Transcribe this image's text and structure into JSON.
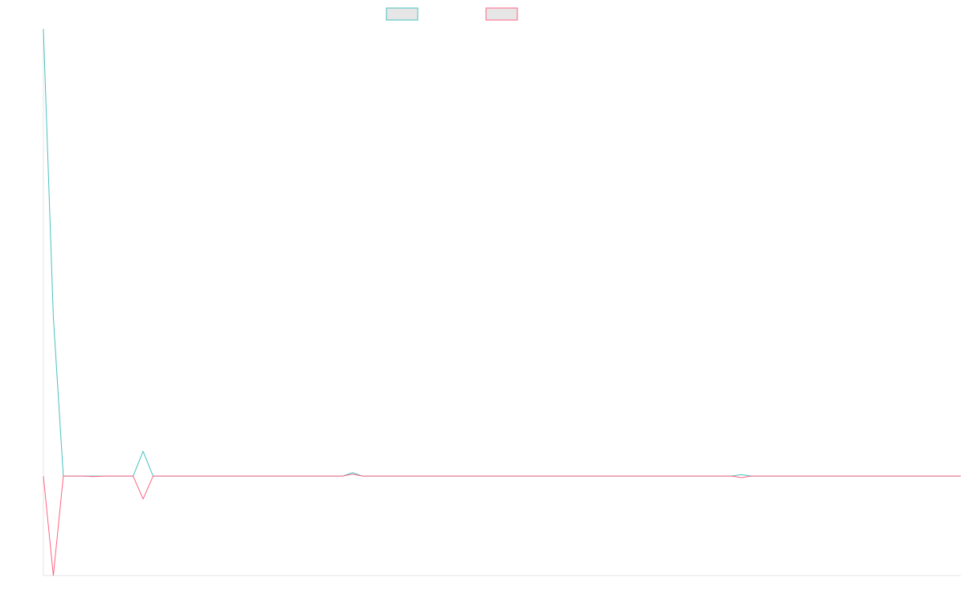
{
  "chart_data": {
    "type": "line",
    "title": "",
    "xlabel": "",
    "ylabel": "",
    "legend": "top-center",
    "grid": false,
    "x": [
      0,
      1,
      2,
      3,
      4,
      5,
      6,
      7,
      8,
      9,
      10,
      11,
      12,
      13,
      14,
      15,
      16,
      17,
      18,
      19,
      20,
      21,
      22,
      23,
      24,
      25,
      26,
      27,
      28,
      29,
      30,
      31,
      32,
      33,
      34,
      35,
      36,
      37,
      38,
      39,
      40,
      41,
      42,
      43,
      44,
      45,
      46,
      47,
      48,
      49,
      50,
      51,
      52,
      53,
      54,
      55,
      56,
      57,
      58,
      59,
      60,
      61,
      62,
      63,
      64,
      65,
      66,
      67,
      68,
      69,
      70,
      71,
      72,
      73,
      74,
      75,
      76,
      77,
      78,
      79,
      80,
      81,
      82,
      83,
      84,
      85,
      86,
      87,
      88,
      89,
      90,
      91,
      92
    ],
    "xlim": [
      0,
      92
    ],
    "ylim": [
      -100,
      450
    ],
    "series": [
      {
        "name": "",
        "color": "#4bc0c0",
        "fill": "#e6e6e6",
        "values": [
          450,
          160,
          0,
          0,
          0,
          0,
          0,
          0,
          0,
          0,
          25,
          0,
          0,
          0,
          0,
          0,
          0,
          0,
          0,
          0,
          0,
          0,
          0,
          0,
          0,
          0,
          0,
          0,
          0,
          0,
          0,
          3.5,
          0,
          0,
          0,
          0,
          0,
          0,
          0,
          0,
          0,
          0,
          0,
          0,
          0,
          0,
          0,
          0,
          0,
          0,
          0,
          0,
          0,
          0,
          0,
          0,
          0,
          0,
          0,
          0,
          0,
          0,
          0,
          0,
          0,
          0,
          0,
          0,
          0,
          0,
          1.5,
          0,
          0,
          0,
          0,
          0,
          0,
          0,
          0,
          0,
          0,
          0,
          0,
          0,
          0,
          0,
          0,
          0,
          0,
          0,
          0,
          0,
          0
        ]
      },
      {
        "name": "",
        "color": "#ff6384",
        "fill": "#e6e6e6",
        "values": [
          0,
          -100,
          0,
          0,
          0,
          -0.5,
          0,
          0,
          0,
          0,
          -23,
          0,
          0,
          0,
          0,
          0,
          0,
          0,
          0,
          0,
          0,
          0,
          0,
          0,
          0,
          0,
          0,
          0,
          0,
          0,
          0,
          2,
          0,
          0,
          0,
          0,
          0,
          0,
          0,
          0,
          0,
          0,
          0,
          0,
          0,
          0,
          0,
          0,
          0,
          0,
          0,
          0,
          0,
          0,
          0,
          0,
          0,
          0,
          0,
          0,
          0,
          0,
          0,
          0,
          0,
          0,
          0,
          0,
          0,
          0,
          -1.5,
          0,
          0,
          0,
          0,
          0,
          0,
          0,
          0,
          0,
          0,
          0,
          0,
          0,
          0,
          0,
          0,
          0,
          0,
          0,
          0,
          0,
          0
        ]
      }
    ]
  }
}
